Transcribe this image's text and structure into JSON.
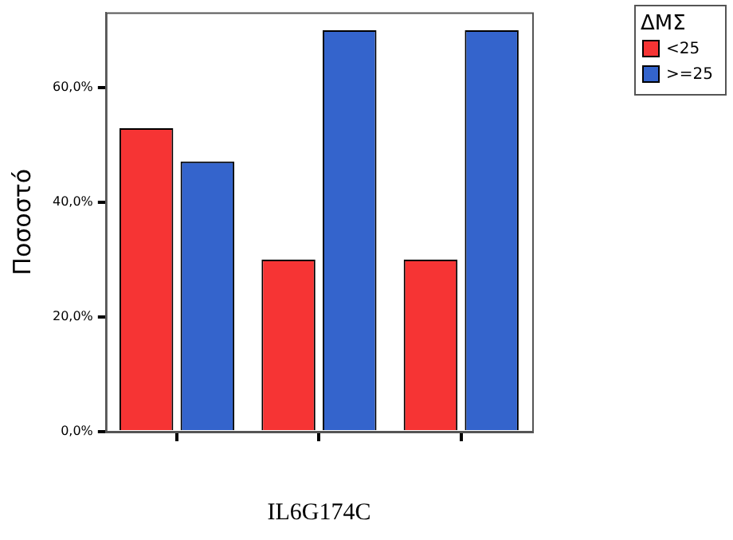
{
  "chart_data": {
    "type": "bar",
    "xlabel": "IL6G174C",
    "ylabel": "Ποσοστό",
    "legend_title": "ΔΜΣ",
    "legend": "top right",
    "categories": [
      null,
      null,
      null
    ],
    "series": [
      {
        "name": "<25",
        "color": "#f63434",
        "values": [
          52.9,
          30.0,
          30.0
        ]
      },
      {
        "name": ">=25",
        "color": "#3464cc",
        "values": [
          47.1,
          70.0,
          70.0
        ]
      }
    ],
    "ylim": [
      0,
      73.1
    ],
    "yticks": [
      {
        "value": 0,
        "label": "0,0%"
      },
      {
        "value": 20,
        "label": "20,0%"
      },
      {
        "value": 40,
        "label": "40,0%"
      },
      {
        "value": 60,
        "label": "60,0%"
      }
    ],
    "grid": false
  }
}
